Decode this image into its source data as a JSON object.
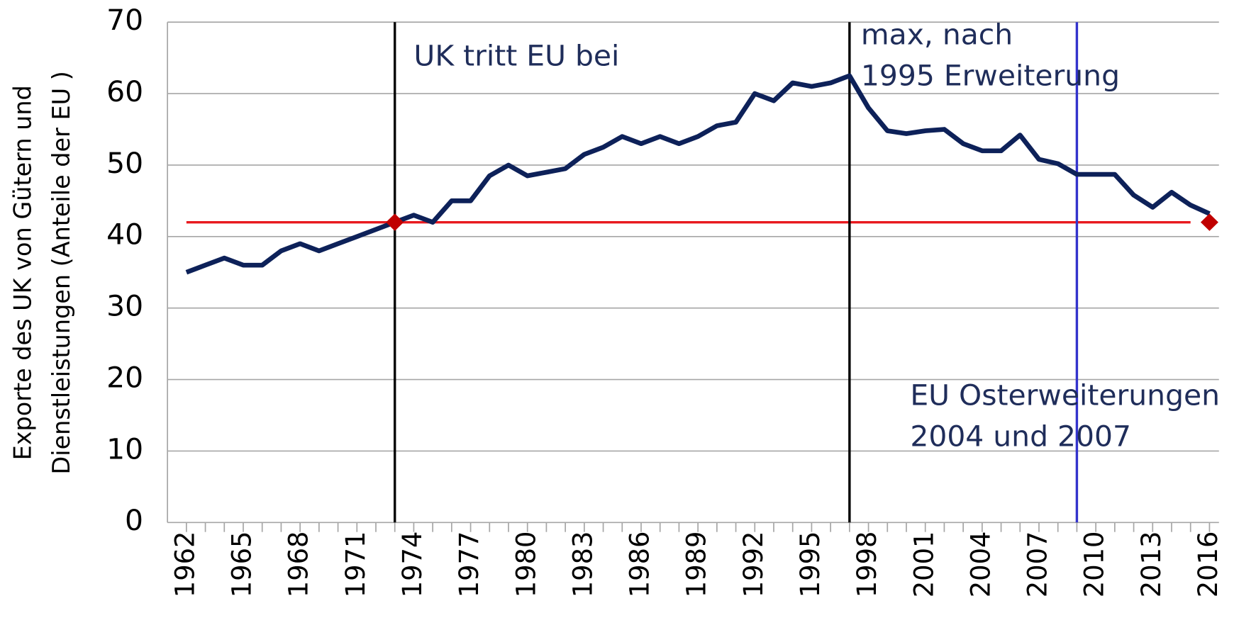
{
  "chart_data": {
    "type": "line",
    "y_label": [
      "Exporte des UK von Gütern und",
      "Dienstleistungen (Anteile der EU )"
    ],
    "x": [
      1962,
      1963,
      1964,
      1965,
      1966,
      1967,
      1968,
      1969,
      1970,
      1971,
      1972,
      1973,
      1974,
      1975,
      1976,
      1977,
      1978,
      1979,
      1980,
      1981,
      1982,
      1983,
      1984,
      1985,
      1986,
      1987,
      1988,
      1989,
      1990,
      1991,
      1992,
      1993,
      1994,
      1995,
      1996,
      1997,
      1998,
      1999,
      2000,
      2001,
      2002,
      2003,
      2004,
      2005,
      2006,
      2007,
      2008,
      2009,
      2010,
      2011,
      2012,
      2013,
      2014,
      2015,
      2016
    ],
    "series": [
      {
        "color": "#0d2159",
        "values": [
          35,
          36,
          37,
          36,
          36,
          38,
          39,
          38,
          39,
          40,
          41,
          42,
          43,
          42,
          45,
          45,
          48.5,
          50,
          48.5,
          49,
          49.5,
          51.5,
          52.5,
          54,
          53,
          54,
          53,
          54,
          55.5,
          56,
          60,
          59,
          61.5,
          61,
          61.5,
          62.5,
          58,
          54.8,
          54.4,
          54.8,
          55,
          53,
          52,
          52,
          54.2,
          50.8,
          50.2,
          48.7,
          48.7,
          48.7,
          45.8,
          44.1,
          46.2,
          44.4,
          43.2
        ]
      }
    ],
    "xlim": [
      1961,
      2016.5
    ],
    "ylim": [
      0,
      70
    ],
    "yticks": [
      0,
      10,
      20,
      30,
      40,
      50,
      60,
      70
    ],
    "xticks": [
      1962,
      1965,
      1968,
      1971,
      1974,
      1977,
      1980,
      1983,
      1986,
      1989,
      1992,
      1995,
      1998,
      2001,
      2004,
      2007,
      2010,
      2013,
      2016
    ],
    "grid": true,
    "reference_line": {
      "value": 42,
      "from": 1962,
      "to": 2015,
      "color": "#e8191e"
    },
    "markers": [
      {
        "x": 1973,
        "y": 42
      },
      {
        "x": 2016,
        "y": 42
      }
    ],
    "marker_color": "#c00000",
    "vlines": [
      {
        "x": 1973,
        "color": "#000000"
      },
      {
        "x": 1997,
        "color": "#000000"
      },
      {
        "x": 2009,
        "color": "#3333cc"
      }
    ],
    "annotations": [
      {
        "lines": [
          "UK tritt EU bei"
        ],
        "x": 1974,
        "y": 65
      },
      {
        "lines": [
          "max, nach",
          "1995 Erweiterung"
        ],
        "x": 1997.6,
        "y": 68
      },
      {
        "lines": [
          "EU Osterweiterungen",
          "2004 und 2007"
        ],
        "x": 2000.2,
        "y": 17.5
      }
    ],
    "annotation_color": "#1f2d5a"
  }
}
